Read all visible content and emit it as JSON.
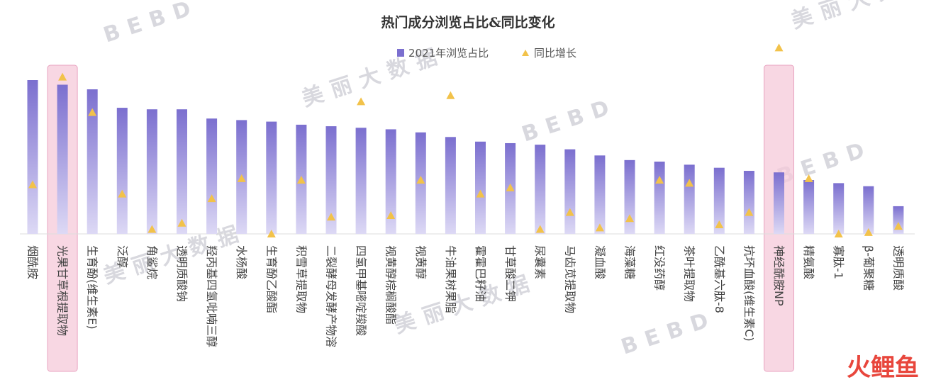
{
  "chart_data": {
    "type": "bar",
    "title": "热门成分浏览占比&同比变化",
    "legend": [
      "2021年浏览占比",
      "同比增长"
    ],
    "series": [
      {
        "name": "2021年浏览占比",
        "kind": "bar",
        "values": [
          100,
          97,
          94,
          82,
          81,
          81,
          75,
          74,
          73,
          71,
          70,
          69,
          68,
          66,
          63,
          60,
          59,
          58,
          55,
          51,
          48,
          47,
          45,
          43,
          41,
          40,
          35,
          33,
          31,
          18
        ]
      },
      {
        "name": "同比增长",
        "kind": "marker",
        "values": [
          32,
          102,
          79,
          26,
          3,
          7,
          23,
          36,
          0,
          35,
          11,
          86,
          12,
          35,
          90,
          26,
          30,
          3,
          14,
          4,
          10,
          35,
          33,
          6,
          14,
          121,
          36,
          0,
          1,
          5
        ]
      }
    ],
    "categories": [
      "烟酰胺",
      "光果甘草根提取物",
      "生育酚(维生素E)",
      "泛醇",
      "角鲨烷",
      "透明质酸钠",
      "羟丙基四氢吡喃三醇",
      "水杨酸",
      "生育酚乙酸酯",
      "积雪草提取物",
      "二裂酵母发酵产物溶",
      "四氢甲基嘧啶羧酸",
      "视黄醇棕榈酸酯",
      "视黄醇",
      "牛油果树果脂",
      "霍霍巴籽油",
      "甘草酸二钾",
      "尿囊素",
      "马齿苋提取物",
      "凝血酸",
      "海藻糖",
      "红没药醇",
      "茶叶提取物",
      "乙酰基六肽-8",
      "抗坏血酸(维生素C)",
      "神经酰胺NP",
      "精氨酸",
      "寡肽-1",
      "β-葡聚糖",
      "透明质酸"
    ],
    "highlighted": [
      "光果甘草根提取物",
      "神经酰胺NP"
    ],
    "colors": {
      "bar_top": "#7b6fcf",
      "bar_bottom": "#ddd9f5",
      "marker": "#f2c24a",
      "highlight": "#f5c9d9"
    },
    "watermark": [
      "BEBD",
      "美丽大数据"
    ],
    "brand": "火鲤鱼"
  }
}
